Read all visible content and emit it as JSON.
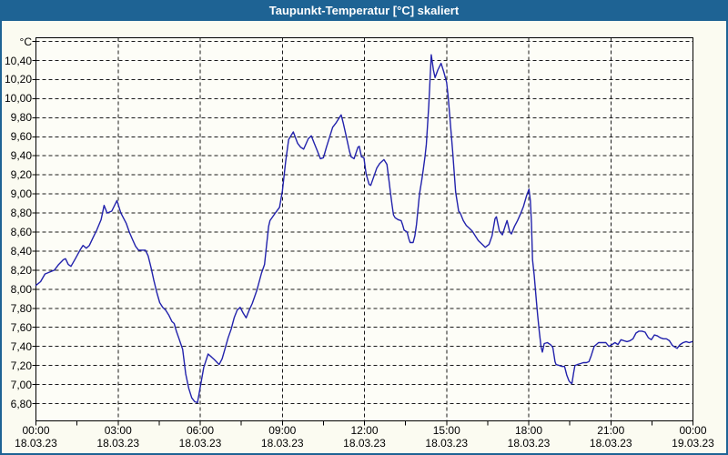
{
  "window": {
    "title": "Taupunkt-Temperatur [°C] skaliert",
    "titlebar_color": "#1e6394",
    "border_color": "#1e6394"
  },
  "chart_data": {
    "type": "line",
    "title": "Taupunkt-Temperatur [°C] skaliert",
    "y_unit_label": "°C",
    "grid": "dashed",
    "legend": "none",
    "line_color": "#2222ac",
    "plot_bg": "#fdfdf7",
    "outer_bg": "#fbfbf1",
    "y_axis": {
      "label_min": 6.8,
      "label_max": 10.4,
      "step": 0.2,
      "grid_top_value": 10.6
    },
    "y_tick_labels": [
      "10,40",
      "10,20",
      "10,00",
      "9,80",
      "9,60",
      "9,40",
      "9,20",
      "9,00",
      "8,80",
      "8,60",
      "8,40",
      "8,20",
      "8,00",
      "7,80",
      "7,60",
      "7,40",
      "7,20",
      "7,00",
      "6,80"
    ],
    "x_axis": {
      "hours_span": 24,
      "major_step_h": 3,
      "minor_tick_h": 1.5
    },
    "x_ticks": [
      {
        "hour": 0,
        "time": "00:00",
        "date": "18.03.23"
      },
      {
        "hour": 3,
        "time": "03:00",
        "date": "18.03.23"
      },
      {
        "hour": 6,
        "time": "06:00",
        "date": "18.03.23"
      },
      {
        "hour": 9,
        "time": "09:00",
        "date": "18.03.23"
      },
      {
        "hour": 12,
        "time": "12:00",
        "date": "18.03.23"
      },
      {
        "hour": 15,
        "time": "15:00",
        "date": "18.03.23"
      },
      {
        "hour": 18,
        "time": "18:00",
        "date": "18.03.23"
      },
      {
        "hour": 21,
        "time": "21:00",
        "date": "18.03.23"
      },
      {
        "hour": 24,
        "time": "00:00",
        "date": "19.03.23"
      }
    ],
    "series": [
      {
        "name": "Taupunkt-Temperatur",
        "points": [
          [
            0.0,
            8.04
          ],
          [
            0.17,
            8.08
          ],
          [
            0.33,
            8.16
          ],
          [
            0.5,
            8.18
          ],
          [
            0.67,
            8.2
          ],
          [
            0.83,
            8.26
          ],
          [
            1.0,
            8.31
          ],
          [
            1.08,
            8.32
          ],
          [
            1.18,
            8.26
          ],
          [
            1.28,
            8.24
          ],
          [
            1.44,
            8.32
          ],
          [
            1.61,
            8.41
          ],
          [
            1.72,
            8.46
          ],
          [
            1.84,
            8.43
          ],
          [
            1.95,
            8.46
          ],
          [
            2.1,
            8.55
          ],
          [
            2.22,
            8.62
          ],
          [
            2.38,
            8.73
          ],
          [
            2.49,
            8.88
          ],
          [
            2.6,
            8.8
          ],
          [
            2.77,
            8.82
          ],
          [
            2.96,
            8.93
          ],
          [
            3.1,
            8.8
          ],
          [
            3.3,
            8.69
          ],
          [
            3.41,
            8.6
          ],
          [
            3.53,
            8.52
          ],
          [
            3.64,
            8.45
          ],
          [
            3.75,
            8.41
          ],
          [
            4.0,
            8.41
          ],
          [
            4.1,
            8.35
          ],
          [
            4.2,
            8.23
          ],
          [
            4.3,
            8.1
          ],
          [
            4.41,
            7.97
          ],
          [
            4.52,
            7.86
          ],
          [
            4.63,
            7.81
          ],
          [
            4.74,
            7.78
          ],
          [
            4.85,
            7.73
          ],
          [
            4.97,
            7.66
          ],
          [
            5.05,
            7.64
          ],
          [
            5.13,
            7.56
          ],
          [
            5.24,
            7.47
          ],
          [
            5.36,
            7.37
          ],
          [
            5.47,
            7.11
          ],
          [
            5.58,
            6.96
          ],
          [
            5.69,
            6.86
          ],
          [
            5.8,
            6.82
          ],
          [
            5.9,
            6.81
          ],
          [
            5.97,
            6.92
          ],
          [
            6.05,
            7.05
          ],
          [
            6.13,
            7.18
          ],
          [
            6.29,
            7.32
          ],
          [
            6.41,
            7.29
          ],
          [
            6.52,
            7.26
          ],
          [
            6.69,
            7.21
          ],
          [
            6.8,
            7.27
          ],
          [
            6.91,
            7.38
          ],
          [
            7.02,
            7.49
          ],
          [
            7.13,
            7.58
          ],
          [
            7.24,
            7.7
          ],
          [
            7.35,
            7.78
          ],
          [
            7.46,
            7.81
          ],
          [
            7.57,
            7.75
          ],
          [
            7.68,
            7.7
          ],
          [
            7.79,
            7.78
          ],
          [
            7.9,
            7.85
          ],
          [
            8.07,
            7.99
          ],
          [
            8.24,
            8.17
          ],
          [
            8.35,
            8.26
          ],
          [
            8.42,
            8.45
          ],
          [
            8.5,
            8.66
          ],
          [
            8.55,
            8.72
          ],
          [
            8.72,
            8.79
          ],
          [
            8.9,
            8.86
          ],
          [
            9.0,
            9.03
          ],
          [
            9.12,
            9.34
          ],
          [
            9.23,
            9.57
          ],
          [
            9.4,
            9.65
          ],
          [
            9.56,
            9.53
          ],
          [
            9.67,
            9.49
          ],
          [
            9.78,
            9.47
          ],
          [
            9.95,
            9.58
          ],
          [
            10.06,
            9.61
          ],
          [
            10.17,
            9.53
          ],
          [
            10.28,
            9.45
          ],
          [
            10.39,
            9.37
          ],
          [
            10.5,
            9.38
          ],
          [
            10.61,
            9.49
          ],
          [
            10.73,
            9.6
          ],
          [
            10.84,
            9.7
          ],
          [
            10.95,
            9.74
          ],
          [
            11.06,
            9.79
          ],
          [
            11.15,
            9.83
          ],
          [
            11.23,
            9.74
          ],
          [
            11.34,
            9.6
          ],
          [
            11.45,
            9.45
          ],
          [
            11.51,
            9.39
          ],
          [
            11.62,
            9.37
          ],
          [
            11.76,
            9.49
          ],
          [
            11.81,
            9.5
          ],
          [
            11.89,
            9.39
          ],
          [
            11.98,
            9.38
          ],
          [
            12.06,
            9.21
          ],
          [
            12.17,
            9.1
          ],
          [
            12.23,
            9.09
          ],
          [
            12.34,
            9.18
          ],
          [
            12.45,
            9.27
          ],
          [
            12.56,
            9.32
          ],
          [
            12.71,
            9.36
          ],
          [
            12.82,
            9.31
          ],
          [
            12.9,
            9.13
          ],
          [
            12.95,
            9.01
          ],
          [
            13.01,
            8.88
          ],
          [
            13.06,
            8.78
          ],
          [
            13.12,
            8.75
          ],
          [
            13.23,
            8.73
          ],
          [
            13.34,
            8.72
          ],
          [
            13.39,
            8.68
          ],
          [
            13.45,
            8.62
          ],
          [
            13.56,
            8.6
          ],
          [
            13.62,
            8.53
          ],
          [
            13.67,
            8.49
          ],
          [
            13.78,
            8.49
          ],
          [
            13.84,
            8.56
          ],
          [
            13.9,
            8.68
          ],
          [
            14.01,
            9.0
          ],
          [
            14.1,
            9.16
          ],
          [
            14.15,
            9.26
          ],
          [
            14.21,
            9.39
          ],
          [
            14.26,
            9.52
          ],
          [
            14.35,
            9.93
          ],
          [
            14.44,
            10.46
          ],
          [
            14.52,
            10.3
          ],
          [
            14.58,
            10.22
          ],
          [
            14.68,
            10.3
          ],
          [
            14.8,
            10.37
          ],
          [
            14.9,
            10.28
          ],
          [
            15.0,
            10.17
          ],
          [
            15.06,
            10.01
          ],
          [
            15.14,
            9.73
          ],
          [
            15.22,
            9.45
          ],
          [
            15.33,
            9.02
          ],
          [
            15.44,
            8.82
          ],
          [
            15.5,
            8.8
          ],
          [
            15.61,
            8.72
          ],
          [
            15.72,
            8.67
          ],
          [
            15.83,
            8.64
          ],
          [
            15.94,
            8.61
          ],
          [
            16.05,
            8.56
          ],
          [
            16.16,
            8.51
          ],
          [
            16.27,
            8.48
          ],
          [
            16.41,
            8.44
          ],
          [
            16.55,
            8.47
          ],
          [
            16.66,
            8.56
          ],
          [
            16.77,
            8.74
          ],
          [
            16.82,
            8.76
          ],
          [
            16.93,
            8.61
          ],
          [
            17.04,
            8.57
          ],
          [
            17.15,
            8.67
          ],
          [
            17.21,
            8.72
          ],
          [
            17.31,
            8.6
          ],
          [
            17.37,
            8.58
          ],
          [
            17.48,
            8.66
          ],
          [
            17.59,
            8.72
          ],
          [
            17.7,
            8.79
          ],
          [
            17.81,
            8.87
          ],
          [
            17.92,
            8.98
          ],
          [
            18.01,
            9.05
          ],
          [
            18.06,
            8.93
          ],
          [
            18.1,
            8.7
          ],
          [
            18.14,
            8.31
          ],
          [
            18.2,
            8.15
          ],
          [
            18.28,
            7.88
          ],
          [
            18.33,
            7.72
          ],
          [
            18.39,
            7.55
          ],
          [
            18.45,
            7.4
          ],
          [
            18.5,
            7.34
          ],
          [
            18.57,
            7.43
          ],
          [
            18.68,
            7.44
          ],
          [
            18.79,
            7.42
          ],
          [
            18.88,
            7.39
          ],
          [
            18.96,
            7.24
          ],
          [
            19.0,
            7.21
          ],
          [
            19.11,
            7.2
          ],
          [
            19.22,
            7.19
          ],
          [
            19.31,
            7.19
          ],
          [
            19.39,
            7.1
          ],
          [
            19.47,
            7.04
          ],
          [
            19.53,
            7.02
          ],
          [
            19.58,
            7.01
          ],
          [
            19.64,
            7.12
          ],
          [
            19.69,
            7.2
          ],
          [
            19.78,
            7.21
          ],
          [
            19.89,
            7.22
          ],
          [
            20.0,
            7.23
          ],
          [
            20.11,
            7.23
          ],
          [
            20.2,
            7.24
          ],
          [
            20.28,
            7.3
          ],
          [
            20.39,
            7.4
          ],
          [
            20.47,
            7.42
          ],
          [
            20.55,
            7.44
          ],
          [
            20.66,
            7.44
          ],
          [
            20.82,
            7.44
          ],
          [
            20.93,
            7.4
          ],
          [
            21.04,
            7.42
          ],
          [
            21.15,
            7.44
          ],
          [
            21.26,
            7.42
          ],
          [
            21.37,
            7.47
          ],
          [
            21.48,
            7.46
          ],
          [
            21.59,
            7.45
          ],
          [
            21.7,
            7.46
          ],
          [
            21.81,
            7.48
          ],
          [
            21.92,
            7.54
          ],
          [
            22.03,
            7.56
          ],
          [
            22.14,
            7.56
          ],
          [
            22.25,
            7.55
          ],
          [
            22.37,
            7.49
          ],
          [
            22.48,
            7.47
          ],
          [
            22.59,
            7.52
          ],
          [
            22.7,
            7.51
          ],
          [
            22.81,
            7.49
          ],
          [
            22.92,
            7.48
          ],
          [
            23.03,
            7.48
          ],
          [
            23.14,
            7.46
          ],
          [
            23.25,
            7.41
          ],
          [
            23.36,
            7.39
          ],
          [
            23.42,
            7.38
          ],
          [
            23.53,
            7.42
          ],
          [
            23.64,
            7.44
          ],
          [
            23.75,
            7.45
          ],
          [
            23.86,
            7.44
          ],
          [
            23.97,
            7.45
          ]
        ]
      }
    ]
  }
}
